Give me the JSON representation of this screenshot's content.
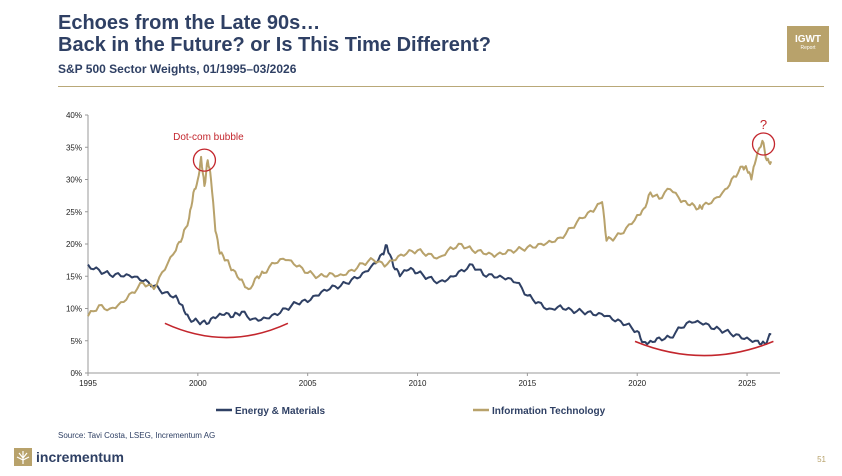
{
  "header": {
    "title_line1": "Echoes from the Late 90s…",
    "title_line2": "Back in the Future? or Is This Time Different?",
    "subtitle": "S&P 500 Sector Weights, 01/1995–03/2026"
  },
  "badge": {
    "line1": "IGWT",
    "line2": "Report"
  },
  "footer": {
    "source": "Source: Tavi Costa, LSEG, Incrementum AG",
    "brand": "incrementum",
    "page_number": "51"
  },
  "colors": {
    "energy": "#2f4064",
    "it": "#b8a26b",
    "annotation": "#c3262d",
    "axis": "#999999"
  },
  "chart_data": {
    "type": "line",
    "title": "S&P 500 Sector Weights, 01/1995–03/2026",
    "xlabel": "",
    "ylabel": "",
    "xlim": [
      1995,
      2026.5
    ],
    "ylim": [
      0,
      40
    ],
    "x_ticks": [
      1995,
      2000,
      2005,
      2010,
      2015,
      2020,
      2025
    ],
    "x_tick_labels": [
      "1995",
      "2000",
      "2005",
      "2010",
      "2015",
      "2020",
      "2025"
    ],
    "y_ticks": [
      0,
      5,
      10,
      15,
      20,
      25,
      30,
      35,
      40
    ],
    "y_tick_labels": [
      "0%",
      "5%",
      "10%",
      "15%",
      "20%",
      "25%",
      "30%",
      "35%",
      "40%"
    ],
    "legend_position": "bottom",
    "series": [
      {
        "name": "Energy & Materials",
        "color_key": "energy",
        "x": [
          1995.0,
          1995.5,
          1996.0,
          1996.5,
          1997.0,
          1997.5,
          1998.0,
          1998.5,
          1999.0,
          1999.3,
          1999.6,
          2000.0,
          2000.4,
          2000.8,
          2001.2,
          2001.6,
          2002.0,
          2002.5,
          2003.0,
          2003.5,
          2004.0,
          2004.5,
          2005.0,
          2005.5,
          2006.0,
          2006.5,
          2007.0,
          2007.5,
          2008.0,
          2008.4,
          2008.6,
          2008.9,
          2009.2,
          2009.6,
          2010.0,
          2010.5,
          2011.0,
          2011.5,
          2012.0,
          2012.5,
          2013.0,
          2013.5,
          2014.0,
          2014.5,
          2015.0,
          2015.5,
          2016.0,
          2016.5,
          2017.0,
          2017.5,
          2018.0,
          2018.5,
          2019.0,
          2019.5,
          2020.0,
          2020.3,
          2020.6,
          2021.0,
          2021.5,
          2022.0,
          2022.5,
          2023.0,
          2023.5,
          2024.0,
          2024.5,
          2025.0,
          2025.5,
          2025.8,
          2026.1
        ],
        "values": [
          16.8,
          16.0,
          15.2,
          15.0,
          14.8,
          14.2,
          13.5,
          12.5,
          12.0,
          10.5,
          8.5,
          8.0,
          7.6,
          8.5,
          9.0,
          8.7,
          9.5,
          8.4,
          8.6,
          9.2,
          10.0,
          10.8,
          11.0,
          12.0,
          13.0,
          13.5,
          14.5,
          15.5,
          17.0,
          18.5,
          19.8,
          16.5,
          15.0,
          16.0,
          15.5,
          14.8,
          14.2,
          15.0,
          16.0,
          16.8,
          15.2,
          14.8,
          14.5,
          14.0,
          12.0,
          11.0,
          10.0,
          10.5,
          9.8,
          9.5,
          9.0,
          8.8,
          8.0,
          7.5,
          6.5,
          4.8,
          5.0,
          5.5,
          5.5,
          7.0,
          7.8,
          7.5,
          6.8,
          6.5,
          6.0,
          5.5,
          5.0,
          4.6,
          6.0
        ]
      },
      {
        "name": "Information Technology",
        "color_key": "it",
        "x": [
          1995.0,
          1995.5,
          1996.0,
          1996.5,
          1997.0,
          1997.5,
          1998.0,
          1998.5,
          1999.0,
          1999.3,
          1999.6,
          1999.8,
          2000.0,
          2000.15,
          2000.3,
          2000.45,
          2000.6,
          2000.8,
          2001.0,
          2001.3,
          2001.6,
          2002.0,
          2002.3,
          2002.7,
          2003.0,
          2003.5,
          2004.0,
          2004.5,
          2005.0,
          2005.5,
          2006.0,
          2006.5,
          2007.0,
          2007.5,
          2008.0,
          2008.5,
          2009.0,
          2009.5,
          2010.0,
          2010.5,
          2011.0,
          2011.5,
          2012.0,
          2012.5,
          2013.0,
          2013.5,
          2014.0,
          2014.5,
          2015.0,
          2015.5,
          2016.0,
          2016.5,
          2017.0,
          2017.5,
          2018.0,
          2018.4,
          2018.6,
          2019.0,
          2019.5,
          2020.0,
          2020.3,
          2020.6,
          2021.0,
          2021.5,
          2022.0,
          2022.4,
          2022.8,
          2023.0,
          2023.5,
          2024.0,
          2024.4,
          2024.8,
          2025.0,
          2025.2,
          2025.4,
          2025.7,
          2025.9,
          2026.1
        ],
        "values": [
          8.8,
          10.5,
          10.0,
          11.0,
          12.5,
          14.0,
          13.0,
          16.0,
          19.0,
          21.0,
          24.0,
          28.0,
          30.0,
          33.5,
          29.0,
          33.0,
          30.0,
          22.0,
          18.5,
          17.5,
          16.0,
          14.5,
          13.0,
          15.0,
          15.5,
          17.0,
          17.5,
          16.5,
          15.5,
          15.0,
          15.5,
          15.3,
          16.0,
          17.0,
          17.5,
          16.5,
          17.5,
          18.5,
          19.0,
          18.5,
          18.0,
          19.5,
          20.0,
          19.0,
          18.5,
          18.0,
          18.5,
          19.0,
          19.5,
          20.0,
          20.5,
          21.0,
          22.5,
          24.0,
          25.0,
          26.5,
          20.5,
          21.0,
          22.5,
          24.5,
          25.5,
          28.0,
          27.0,
          28.5,
          26.5,
          26.0,
          25.5,
          26.0,
          27.0,
          28.5,
          30.5,
          32.0,
          31.5,
          30.0,
          33.0,
          36.0,
          33.0,
          32.8
        ]
      }
    ],
    "annotations": [
      {
        "text": "Dot-com bubble",
        "x": 2000.3,
        "y": 33.0,
        "type": "circle-label"
      },
      {
        "text": "?",
        "x": 2025.75,
        "y": 35.5,
        "type": "circle-label"
      }
    ],
    "highlight_arcs": [
      {
        "x_range": [
          1998.5,
          2004.1
        ],
        "y_depth": 5.5,
        "label": ""
      },
      {
        "x_range": [
          2019.9,
          2026.2
        ],
        "y_depth": 2.7,
        "label": ""
      }
    ]
  }
}
